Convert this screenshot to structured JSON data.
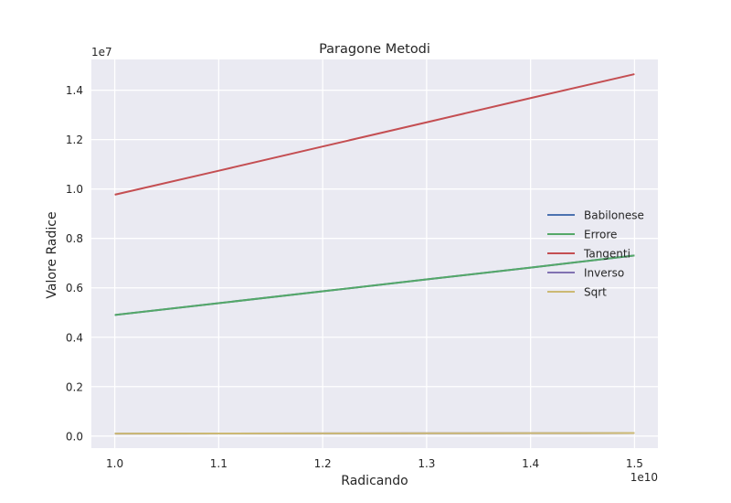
{
  "chart_data": {
    "type": "line",
    "title": "Paragone Metodi",
    "xlabel": "Radicando",
    "ylabel": "Valore Radice",
    "x_offset_label": "1e10",
    "y_offset_label": "1e7",
    "x": [
      1.0,
      1.1,
      1.2,
      1.3,
      1.4,
      1.5
    ],
    "xlim": [
      0.9775,
      1.5225
    ],
    "ylim": [
      -0.0488,
      1.5244
    ],
    "x_ticks": [
      1.0,
      1.1,
      1.2,
      1.3,
      1.4,
      1.5
    ],
    "x_tick_labels": [
      "1.0",
      "1.1",
      "1.2",
      "1.3",
      "1.4",
      "1.5"
    ],
    "y_ticks": [
      0.0,
      0.2,
      0.4,
      0.6,
      0.8,
      1.0,
      1.2,
      1.4
    ],
    "y_tick_labels": [
      "0.0",
      "0.2",
      "0.4",
      "0.6",
      "0.8",
      "1.0",
      "1.2",
      "1.4"
    ],
    "grid": true,
    "legend_position": "center-right",
    "series": [
      {
        "name": "Babilonese",
        "color": "#4c72b0",
        "values": [
          0.49,
          0.538,
          0.586,
          0.634,
          0.682,
          0.731
        ]
      },
      {
        "name": "Errore",
        "color": "#55a868",
        "values": [
          0.49,
          0.538,
          0.586,
          0.634,
          0.682,
          0.731
        ]
      },
      {
        "name": "Tangenti",
        "color": "#c44e52",
        "values": [
          0.977,
          1.074,
          1.172,
          1.27,
          1.368,
          1.465
        ]
      },
      {
        "name": "Inverso",
        "color": "#8172b2",
        "values": [
          0.01,
          0.0105,
          0.011,
          0.0114,
          0.0118,
          0.0122
        ]
      },
      {
        "name": "Sqrt",
        "color": "#ccb974",
        "values": [
          0.01,
          0.0105,
          0.011,
          0.0114,
          0.0118,
          0.0122
        ]
      }
    ]
  }
}
